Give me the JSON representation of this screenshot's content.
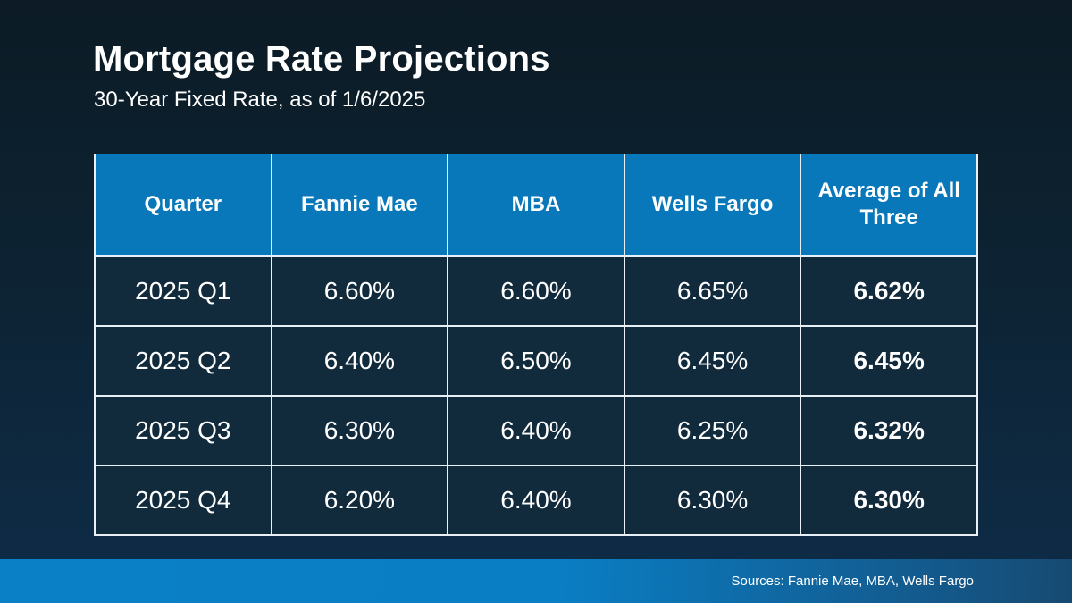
{
  "slide": {
    "title": "Mortgage Rate Projections",
    "subtitle": "30-Year Fixed Rate, as of 1/6/2025",
    "source_note": "Sources: Fannie Mae, MBA, Wells Fargo"
  },
  "colors": {
    "background_top": "#0c1b25",
    "background_bottom": "#0e2c48",
    "header_blue": "#0878ba",
    "cell_navy": "#112a3c",
    "table_border": "#e9f0f6",
    "footer_bar_left": "#0a80c6",
    "footer_bar_right": "#164a71",
    "text": "#ffffff"
  },
  "chart_data": {
    "type": "table",
    "title": "Mortgage Rate Projections",
    "subtitle": "30-Year Fixed Rate, as of 1/6/2025",
    "columns": [
      "Quarter",
      "Fannie Mae",
      "MBA",
      "Wells Fargo",
      "Average of All Three"
    ],
    "rows": [
      [
        "2025 Q1",
        "6.60%",
        "6.60%",
        "6.65%",
        "6.62%"
      ],
      [
        "2025 Q2",
        "6.40%",
        "6.50%",
        "6.45%",
        "6.45%"
      ],
      [
        "2025 Q3",
        "6.30%",
        "6.40%",
        "6.25%",
        "6.32%"
      ],
      [
        "2025 Q4",
        "6.20%",
        "6.40%",
        "6.30%",
        "6.30%"
      ]
    ]
  }
}
